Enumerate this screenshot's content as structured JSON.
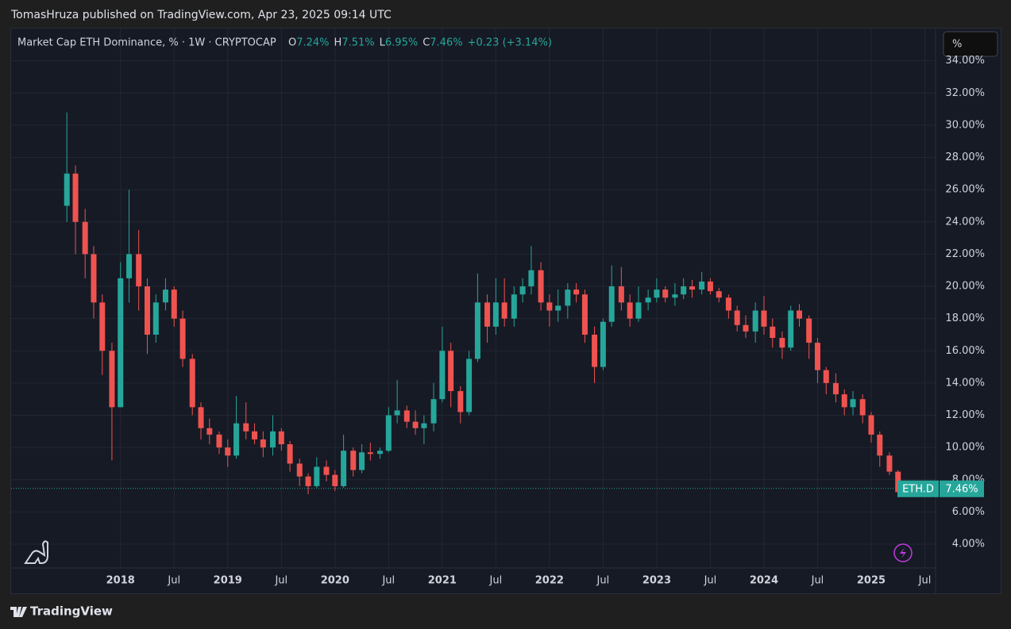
{
  "header": {
    "published": "TomasHruza published on TradingView.com, Apr 23, 2025 09:14 UTC"
  },
  "footer": {
    "brand": "TradingView"
  },
  "scale_button": "%",
  "chart_data": {
    "type": "candlestick",
    "title": "Market Cap ETH Dominance, % · 1W · CRYPTOCAP",
    "ohlc_legend": [
      {
        "key": "O",
        "text": "7.24%"
      },
      {
        "key": "H",
        "text": "7.51%"
      },
      {
        "key": "L",
        "text": "6.95%"
      },
      {
        "key": "C",
        "text": "7.46%"
      }
    ],
    "change": "+0.23 (+3.14%)",
    "symbol": "ETH.D",
    "last_price": {
      "value": 7.46,
      "label": "7.46%"
    },
    "up_color": "#26a69a",
    "down_color": "#ef5350",
    "grid": true,
    "x": [
      2017.5,
      2017.58,
      2017.67,
      2017.75,
      2017.83,
      2017.92,
      2018.0,
      2018.08,
      2018.17,
      2018.25,
      2018.33,
      2018.42,
      2018.5,
      2018.58,
      2018.67,
      2018.75,
      2018.83,
      2018.92,
      2019.0,
      2019.08,
      2019.17,
      2019.25,
      2019.33,
      2019.42,
      2019.5,
      2019.58,
      2019.67,
      2019.75,
      2019.83,
      2019.92,
      2020.0,
      2020.08,
      2020.17,
      2020.25,
      2020.33,
      2020.42,
      2020.5,
      2020.58,
      2020.67,
      2020.75,
      2020.83,
      2020.92,
      2021.0,
      2021.08,
      2021.17,
      2021.25,
      2021.33,
      2021.42,
      2021.5,
      2021.58,
      2021.67,
      2021.75,
      2021.83,
      2021.92,
      2022.0,
      2022.08,
      2022.17,
      2022.25,
      2022.33,
      2022.42,
      2022.5,
      2022.58,
      2022.67,
      2022.75,
      2022.83,
      2022.92,
      2023.0,
      2023.08,
      2023.17,
      2023.25,
      2023.33,
      2023.42,
      2023.5,
      2023.58,
      2023.67,
      2023.75,
      2023.83,
      2023.92,
      2024.0,
      2024.08,
      2024.17,
      2024.25,
      2024.33,
      2024.42,
      2024.5,
      2024.58,
      2024.67,
      2024.75,
      2024.83,
      2024.92,
      2025.0,
      2025.08,
      2025.17,
      2025.25,
      2025.31
    ],
    "open": [
      25,
      27,
      24,
      22,
      19,
      16,
      12.5,
      20.5,
      22,
      20,
      17,
      19,
      19.8,
      18,
      15.5,
      12.5,
      11.2,
      10.8,
      10,
      9.5,
      11.5,
      11,
      10.5,
      10,
      11,
      10.2,
      9,
      8.2,
      7.6,
      8.8,
      8.3,
      7.6,
      9.8,
      8.6,
      9.7,
      9.6,
      9.8,
      12,
      12.3,
      11.6,
      11.2,
      11.5,
      13,
      16,
      13.5,
      12.2,
      15.5,
      19,
      17.5,
      19,
      18,
      19.5,
      20,
      21,
      19,
      18.5,
      18.8,
      19.8,
      19.5,
      17,
      15,
      17.8,
      20,
      19,
      18,
      19,
      19.3,
      19.8,
      19.3,
      19.5,
      20,
      19.8,
      20.3,
      19.7,
      19.3,
      18.5,
      17.6,
      17.2,
      18.5,
      17.5,
      16.8,
      16.2,
      18.5,
      18,
      16.5,
      14.8,
      14,
      13.3,
      12.5,
      13,
      12,
      10.8,
      9.5,
      8.5,
      7.24
    ],
    "high": [
      30.8,
      27.5,
      24.8,
      22.5,
      19.5,
      16.5,
      21.5,
      26,
      23.5,
      20.5,
      19.5,
      20.5,
      20,
      18.5,
      15.8,
      12.8,
      11.8,
      11,
      10.5,
      13.2,
      12.8,
      11.5,
      11,
      12,
      11.2,
      10.4,
      9.3,
      8.4,
      9.4,
      9.2,
      8.6,
      10.8,
      10,
      10.2,
      10.3,
      10,
      12.5,
      14.2,
      12.6,
      12.3,
      12,
      14,
      17.5,
      16.5,
      13.8,
      16,
      20.8,
      19.5,
      20.5,
      20.5,
      20,
      20.5,
      22.5,
      21.5,
      19.5,
      19.8,
      20.2,
      20.2,
      19.8,
      17.5,
      18,
      21.3,
      21.2,
      19.5,
      20,
      19.8,
      20.5,
      20,
      20.2,
      20.5,
      20.4,
      20.9,
      20.5,
      19.9,
      19.5,
      18.8,
      18.2,
      19,
      19.4,
      18,
      17.2,
      18.8,
      18.9,
      18.2,
      16.8,
      15,
      14.6,
      13.6,
      13.5,
      13.3,
      12.2,
      11,
      9.7,
      8.6,
      7.51
    ],
    "low": [
      24,
      22,
      20.5,
      18,
      14.5,
      9.2,
      12.5,
      19,
      18.5,
      15.8,
      16.5,
      18.5,
      17.5,
      15,
      12,
      10.5,
      10.2,
      9.6,
      8.8,
      9.3,
      10.5,
      10.2,
      9.4,
      9.5,
      9.8,
      8.5,
      7.6,
      7.1,
      7.5,
      7.9,
      7.3,
      7.5,
      8.2,
      8.4,
      9.2,
      9.3,
      9.7,
      11.5,
      11.2,
      10.8,
      10.2,
      11,
      12.8,
      12.5,
      11.5,
      12,
      15.3,
      16.5,
      17,
      17.5,
      17.5,
      19,
      19.5,
      18.5,
      17.5,
      17.8,
      18,
      19,
      16.5,
      14,
      14.8,
      17.5,
      18.5,
      17.5,
      17.8,
      18.5,
      19,
      19,
      18.8,
      19.2,
      19.3,
      19.5,
      19.5,
      19,
      18,
      17.2,
      16.8,
      16.5,
      17,
      16.2,
      15.5,
      16,
      17.5,
      15.5,
      14,
      13.3,
      12.8,
      12,
      12,
      11.5,
      10.3,
      8.8,
      8.3,
      7.1,
      6.95
    ],
    "close": [
      27,
      24,
      22,
      19,
      16,
      12.5,
      20.5,
      22,
      20,
      17,
      19,
      19.8,
      18,
      15.5,
      12.5,
      11.2,
      10.8,
      10,
      9.5,
      11.5,
      11,
      10.5,
      10,
      11,
      10.2,
      9,
      8.2,
      7.6,
      8.8,
      8.3,
      7.6,
      9.8,
      8.6,
      9.7,
      9.6,
      9.8,
      12,
      12.3,
      11.6,
      11.2,
      11.5,
      13,
      16,
      13.5,
      12.2,
      15.5,
      19,
      17.5,
      19,
      18,
      19.5,
      20,
      21,
      19,
      18.5,
      18.8,
      19.8,
      19.5,
      17,
      15,
      17.8,
      20,
      19,
      18,
      19,
      19.3,
      19.8,
      19.3,
      19.5,
      20,
      19.8,
      20.3,
      19.7,
      19.3,
      18.5,
      17.6,
      17.2,
      18.5,
      17.5,
      16.8,
      16.2,
      18.5,
      18,
      16.5,
      14.8,
      14,
      13.3,
      12.5,
      13,
      12,
      10.8,
      9.5,
      8.5,
      7.23,
      7.46
    ],
    "xlim": [
      2016.98,
      2025.6
    ],
    "xticks": [
      {
        "value": 2018,
        "label": "2018"
      },
      {
        "value": 2018.5,
        "label": "Jul"
      },
      {
        "value": 2019,
        "label": "2019"
      },
      {
        "value": 2019.5,
        "label": "Jul"
      },
      {
        "value": 2020,
        "label": "2020"
      },
      {
        "value": 2020.5,
        "label": "Jul"
      },
      {
        "value": 2021,
        "label": "2021"
      },
      {
        "value": 2021.5,
        "label": "Jul"
      },
      {
        "value": 2022,
        "label": "2022"
      },
      {
        "value": 2022.5,
        "label": "Jul"
      },
      {
        "value": 2023,
        "label": "2023"
      },
      {
        "value": 2023.5,
        "label": "Jul"
      },
      {
        "value": 2024,
        "label": "2024"
      },
      {
        "value": 2024.5,
        "label": "Jul"
      },
      {
        "value": 2025,
        "label": "2025"
      },
      {
        "value": 2025.5,
        "label": "Jul"
      }
    ],
    "ylim": [
      0.95,
      36.0
    ],
    "yticks": [
      {
        "value": 4,
        "label": "4.00%"
      },
      {
        "value": 6,
        "label": "6.00%"
      },
      {
        "value": 8,
        "label": "8.00%"
      },
      {
        "value": 10,
        "label": "10.00%"
      },
      {
        "value": 12,
        "label": "12.00%"
      },
      {
        "value": 14,
        "label": "14.00%"
      },
      {
        "value": 16,
        "label": "16.00%"
      },
      {
        "value": 18,
        "label": "18.00%"
      },
      {
        "value": 20,
        "label": "20.00%"
      },
      {
        "value": 22,
        "label": "22.00%"
      },
      {
        "value": 24,
        "label": "24.00%"
      },
      {
        "value": 26,
        "label": "26.00%"
      },
      {
        "value": 28,
        "label": "28.00%"
      },
      {
        "value": 30,
        "label": "30.00%"
      },
      {
        "value": 32,
        "label": "32.00%"
      },
      {
        "value": 34,
        "label": "34.00%"
      }
    ]
  }
}
